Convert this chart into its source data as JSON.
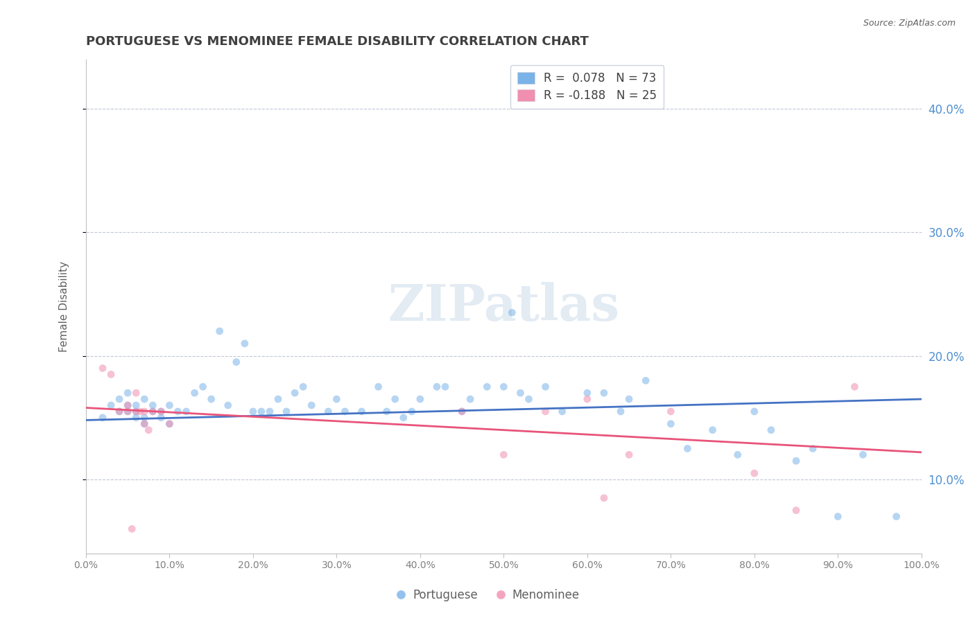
{
  "title": "PORTUGUESE VS MENOMINEE FEMALE DISABILITY CORRELATION CHART",
  "source": "Source: ZipAtlas.com",
  "xlabel": "",
  "ylabel": "Female Disability",
  "watermark": "ZIPatlas",
  "legend_entries": [
    {
      "label": "R =  0.078   N = 73",
      "color": "#a8c8f0"
    },
    {
      "label": "R = -0.188   N = 25",
      "color": "#f0a8c0"
    }
  ],
  "legend_labels": [
    "Portuguese",
    "Menominee"
  ],
  "xlim": [
    0.0,
    1.0
  ],
  "ylim": [
    0.04,
    0.44
  ],
  "xticks": [
    0.0,
    0.1,
    0.2,
    0.3,
    0.4,
    0.5,
    0.6,
    0.7,
    0.8,
    0.9,
    1.0
  ],
  "yticks": [
    0.1,
    0.2,
    0.3,
    0.4
  ],
  "ytick_labels": [
    "10.0%",
    "20.0%",
    "30.0%",
    "40.0%"
  ],
  "xtick_labels": [
    "0.0%",
    "10.0%",
    "20.0%",
    "30.0%",
    "40.0%",
    "50.0%",
    "60.0%",
    "70.0%",
    "80.0%",
    "90.0%",
    "100.0%"
  ],
  "blue_scatter_x": [
    0.02,
    0.03,
    0.04,
    0.04,
    0.05,
    0.05,
    0.05,
    0.06,
    0.06,
    0.06,
    0.07,
    0.07,
    0.07,
    0.08,
    0.08,
    0.09,
    0.09,
    0.1,
    0.1,
    0.11,
    0.12,
    0.13,
    0.14,
    0.15,
    0.16,
    0.17,
    0.18,
    0.19,
    0.2,
    0.21,
    0.22,
    0.23,
    0.24,
    0.25,
    0.26,
    0.27,
    0.29,
    0.3,
    0.31,
    0.33,
    0.35,
    0.36,
    0.37,
    0.38,
    0.39,
    0.4,
    0.42,
    0.43,
    0.45,
    0.46,
    0.48,
    0.5,
    0.51,
    0.52,
    0.53,
    0.55,
    0.57,
    0.6,
    0.62,
    0.64,
    0.65,
    0.67,
    0.7,
    0.72,
    0.75,
    0.78,
    0.8,
    0.82,
    0.85,
    0.87,
    0.9,
    0.93,
    0.97
  ],
  "blue_scatter_y": [
    0.15,
    0.16,
    0.155,
    0.165,
    0.155,
    0.16,
    0.17,
    0.15,
    0.155,
    0.16,
    0.145,
    0.15,
    0.165,
    0.155,
    0.16,
    0.15,
    0.155,
    0.145,
    0.16,
    0.155,
    0.155,
    0.17,
    0.175,
    0.165,
    0.22,
    0.16,
    0.195,
    0.21,
    0.155,
    0.155,
    0.155,
    0.165,
    0.155,
    0.17,
    0.175,
    0.16,
    0.155,
    0.165,
    0.155,
    0.155,
    0.175,
    0.155,
    0.165,
    0.15,
    0.155,
    0.165,
    0.175,
    0.175,
    0.155,
    0.165,
    0.175,
    0.175,
    0.235,
    0.17,
    0.165,
    0.175,
    0.155,
    0.17,
    0.17,
    0.155,
    0.165,
    0.18,
    0.145,
    0.125,
    0.14,
    0.12,
    0.155,
    0.14,
    0.115,
    0.125,
    0.07,
    0.12,
    0.07
  ],
  "pink_scatter_x": [
    0.02,
    0.03,
    0.04,
    0.05,
    0.05,
    0.06,
    0.06,
    0.07,
    0.07,
    0.08,
    0.09,
    0.1,
    0.055,
    0.065,
    0.075,
    0.45,
    0.5,
    0.55,
    0.6,
    0.62,
    0.65,
    0.7,
    0.8,
    0.85,
    0.92
  ],
  "pink_scatter_y": [
    0.19,
    0.185,
    0.155,
    0.155,
    0.16,
    0.155,
    0.17,
    0.145,
    0.155,
    0.155,
    0.155,
    0.145,
    0.06,
    0.155,
    0.14,
    0.155,
    0.12,
    0.155,
    0.165,
    0.085,
    0.12,
    0.155,
    0.105,
    0.075,
    0.175
  ],
  "blue_line_x": [
    0.0,
    1.0
  ],
  "blue_line_y": [
    0.148,
    0.165
  ],
  "pink_line_x": [
    0.0,
    1.0
  ],
  "pink_line_y": [
    0.158,
    0.122
  ],
  "blue_color": "#7ab3e8",
  "pink_color": "#f08faf",
  "blue_line_color": "#4472c4",
  "pink_line_color": "#e8547a",
  "bg_color": "#ffffff",
  "plot_bg_color": "#ffffff",
  "grid_color": "#c0c8d8",
  "title_color": "#404040",
  "axis_label_color": "#606060",
  "tick_color": "#808080",
  "right_tick_color": "#5090d0",
  "watermark_color": "#c8d8e8",
  "scatter_size": 60,
  "scatter_alpha": 0.55,
  "line_width": 2.0
}
